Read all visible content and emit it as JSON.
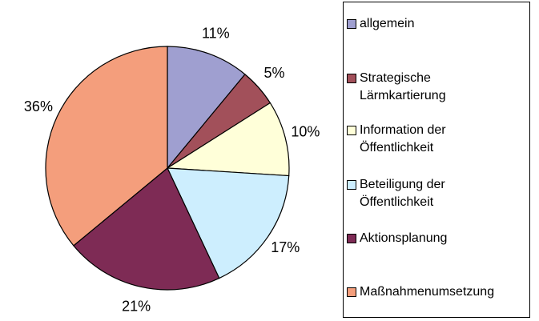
{
  "chart_data": {
    "type": "pie",
    "categories": [
      "allgemein",
      "Strategische Lärmkartierung",
      "Information der Öffentlichkeit",
      "Beteiligung der Öffentlichkeit",
      "Aktionsplanung",
      "Maßnahmenumsetzung"
    ],
    "values": [
      11,
      5,
      10,
      17,
      21,
      36
    ],
    "value_labels": [
      "11%",
      "5%",
      "10%",
      "17%",
      "21%",
      "36%"
    ],
    "colors": [
      "#9f9fd0",
      "#a2505a",
      "#ffffd9",
      "#cdeefe",
      "#7e2b55",
      "#f49e7c"
    ],
    "legend": "right"
  }
}
